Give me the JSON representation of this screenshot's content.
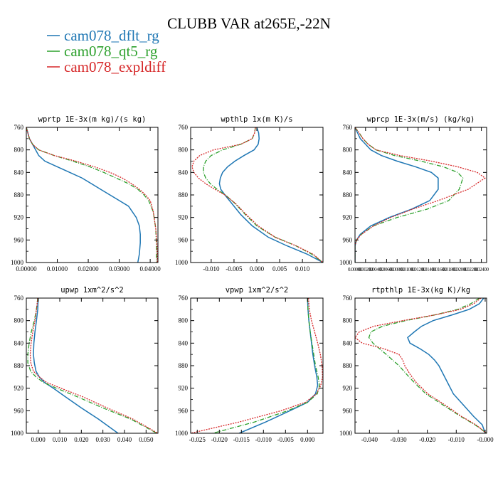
{
  "figure": {
    "title": "CLUBB VAR at265E,-22N",
    "legend": [
      {
        "label": "cam078_dflt_rg",
        "color": "#1f77b4",
        "dash": "solid"
      },
      {
        "label": "cam078_qt5_rg",
        "color": "#2ca02c",
        "dash": "dashdot"
      },
      {
        "label": "cam078_expldiff",
        "color": "#d62728",
        "dash": "dotted"
      }
    ]
  },
  "chart_data": [
    {
      "type": "line",
      "title": "wprtp  1E-3x(m kg)/(s kg)",
      "xlim": [
        0.0,
        0.0425
      ],
      "ylim": [
        760,
        1000
      ],
      "y_inverted": true,
      "xticks": [
        0.0,
        0.01,
        0.02,
        0.03,
        0.04
      ],
      "xtick_labels": [
        "0.00000",
        "0.01000",
        "0.02000",
        "0.03000",
        "0.04000"
      ],
      "yticks": [
        760,
        800,
        840,
        880,
        920,
        960,
        1000
      ],
      "series": [
        {
          "name": "cam078_dflt_rg",
          "x": [
            0.0,
            0.0005,
            0.001,
            0.002,
            0.003,
            0.004,
            0.006,
            0.01,
            0.014,
            0.018,
            0.021,
            0.024,
            0.027,
            0.03,
            0.033,
            0.0355,
            0.0365,
            0.0368,
            0.0368,
            0.0365,
            0.036
          ],
          "y": [
            760,
            770,
            780,
            790,
            800,
            810,
            820,
            830,
            840,
            850,
            860,
            870,
            880,
            890,
            900,
            920,
            935,
            950,
            965,
            985,
            1000
          ]
        },
        {
          "name": "cam078_qt5_rg",
          "x": [
            0.0,
            0.0005,
            0.001,
            0.002,
            0.004,
            0.009,
            0.015,
            0.0205,
            0.025,
            0.029,
            0.033,
            0.036,
            0.038,
            0.0395,
            0.041,
            0.0418,
            0.042,
            0.042
          ],
          "y": [
            760,
            770,
            780,
            790,
            800,
            810,
            820,
            830,
            840,
            850,
            860,
            870,
            880,
            890,
            910,
            940,
            970,
            1000
          ]
        },
        {
          "name": "cam078_expldiff",
          "x": [
            0.0,
            0.0005,
            0.001,
            0.002,
            0.004,
            0.009,
            0.016,
            0.022,
            0.027,
            0.031,
            0.034,
            0.0365,
            0.0385,
            0.04,
            0.041,
            0.0418,
            0.0422,
            0.0423
          ],
          "y": [
            760,
            770,
            780,
            790,
            800,
            810,
            820,
            830,
            840,
            850,
            860,
            870,
            880,
            890,
            910,
            940,
            970,
            1000
          ]
        }
      ]
    },
    {
      "type": "line",
      "title": "wpthlp  1x(m K)/s",
      "xlim": [
        -0.0145,
        0.0145
      ],
      "ylim": [
        760,
        1000
      ],
      "y_inverted": true,
      "xticks": [
        -0.01,
        -0.005,
        0.0,
        0.005,
        0.01
      ],
      "xtick_labels": [
        "-0.010",
        "-0.005",
        "0.000",
        "0.005",
        "0.010"
      ],
      "yticks": [
        760,
        800,
        840,
        880,
        920,
        960,
        1000
      ],
      "series": [
        {
          "name": "cam078_dflt_rg",
          "x": [
            0.0,
            0.0004,
            0.0005,
            0.0003,
            -0.0006,
            -0.0028,
            -0.0048,
            -0.0064,
            -0.0075,
            -0.008,
            -0.0082,
            -0.0079,
            -0.007,
            -0.0055,
            -0.0035,
            -0.001,
            0.0025,
            0.0065,
            0.011,
            0.0145
          ],
          "y": [
            760,
            770,
            780,
            790,
            800,
            810,
            820,
            830,
            840,
            850,
            860,
            870,
            880,
            895,
            915,
            935,
            955,
            970,
            985,
            1000
          ]
        },
        {
          "name": "cam078_qt5_rg",
          "x": [
            -0.0003,
            -0.0005,
            -0.001,
            -0.0035,
            -0.0075,
            -0.01,
            -0.0112,
            -0.0117,
            -0.0117,
            -0.0112,
            -0.0102,
            -0.0087,
            -0.0069,
            -0.0048,
            -0.0025,
            0.0,
            0.004,
            0.0085,
            0.012,
            0.0145
          ],
          "y": [
            760,
            770,
            780,
            790,
            800,
            810,
            820,
            830,
            840,
            850,
            860,
            870,
            880,
            895,
            915,
            935,
            955,
            970,
            985,
            1000
          ]
        },
        {
          "name": "cam078_expldiff",
          "x": [
            -0.0003,
            -0.0005,
            -0.001,
            -0.0035,
            -0.0095,
            -0.0125,
            -0.0138,
            -0.0142,
            -0.0138,
            -0.0128,
            -0.0112,
            -0.0092,
            -0.007,
            -0.0047,
            -0.0023,
            0.0003,
            0.004,
            0.0085,
            0.0123,
            0.0145
          ],
          "y": [
            760,
            770,
            780,
            790,
            800,
            810,
            820,
            830,
            840,
            850,
            860,
            870,
            880,
            895,
            915,
            935,
            955,
            970,
            985,
            1000
          ]
        }
      ]
    },
    {
      "type": "line",
      "title": "wprcp  1E-3x(m/s) (kg/kg)",
      "xlim": [
        0.0,
        0.025
      ],
      "ylim": [
        760,
        1000
      ],
      "y_inverted": true,
      "xticks": [
        0.0,
        0.002,
        0.004,
        0.006,
        0.008,
        0.01,
        0.012,
        0.014,
        0.016,
        0.018,
        0.02,
        0.022,
        0.024
      ],
      "xtick_labels": [
        "0.00000",
        "0.00200",
        "0.00400",
        "0.00600",
        "0.00800",
        "0.01000",
        "0.01200",
        "0.01400",
        "0.01600",
        "0.01800",
        "0.02000",
        "0.02200",
        "0.02400"
      ],
      "yticks": [
        760,
        800,
        840,
        880,
        920,
        960,
        1000
      ],
      "series": [
        {
          "name": "cam078_dflt_rg",
          "x": [
            0.0,
            0.0005,
            0.001,
            0.002,
            0.003,
            0.005,
            0.008,
            0.0115,
            0.0145,
            0.0158,
            0.0158,
            0.0142,
            0.0108,
            0.0065,
            0.003,
            0.001,
            0.0003,
            0.0,
            0.0
          ],
          "y": [
            760,
            770,
            780,
            790,
            800,
            810,
            820,
            830,
            840,
            850,
            870,
            890,
            905,
            920,
            935,
            950,
            960,
            970,
            1000
          ]
        },
        {
          "name": "cam078_qt5_rg",
          "x": [
            0.0,
            0.0008,
            0.0015,
            0.0025,
            0.004,
            0.0075,
            0.0125,
            0.0168,
            0.0195,
            0.0205,
            0.0198,
            0.0178,
            0.0138,
            0.008,
            0.0035,
            0.0012,
            0.0003,
            0.0,
            0.0
          ],
          "y": [
            760,
            770,
            780,
            790,
            800,
            810,
            820,
            830,
            840,
            850,
            870,
            890,
            905,
            920,
            935,
            950,
            960,
            970,
            1000
          ]
        },
        {
          "name": "cam078_expldiff",
          "x": [
            0.0,
            0.0008,
            0.0015,
            0.0025,
            0.004,
            0.0085,
            0.0145,
            0.0195,
            0.0232,
            0.0247,
            0.0215,
            0.0158,
            0.011,
            0.0068,
            0.0035,
            0.0012,
            0.0003,
            0.0,
            0.0
          ],
          "y": [
            760,
            770,
            780,
            790,
            800,
            810,
            820,
            830,
            840,
            850,
            870,
            890,
            905,
            920,
            935,
            950,
            960,
            970,
            1000
          ]
        }
      ]
    },
    {
      "type": "line",
      "title": "upwp  1xm^2/s^2",
      "xlim": [
        -0.0055,
        0.0555
      ],
      "ylim": [
        760,
        1000
      ],
      "y_inverted": true,
      "xticks": [
        0.0,
        0.01,
        0.02,
        0.03,
        0.04,
        0.05
      ],
      "xtick_labels": [
        "0.000",
        "0.010",
        "0.020",
        "0.030",
        "0.040",
        "0.050"
      ],
      "yticks": [
        760,
        800,
        840,
        880,
        920,
        960,
        1000
      ],
      "series": [
        {
          "name": "cam078_dflt_rg",
          "x": [
            0.0,
            -0.0002,
            -0.0008,
            -0.0015,
            -0.002,
            -0.0022,
            -0.0018,
            -0.001,
            0.0005,
            0.003,
            0.007,
            0.0125,
            0.02,
            0.028,
            0.037
          ],
          "y": [
            760,
            780,
            800,
            820,
            840,
            860,
            875,
            890,
            900,
            910,
            920,
            935,
            955,
            975,
            1000
          ]
        },
        {
          "name": "cam078_qt5_rg",
          "x": [
            -0.0002,
            -0.0008,
            -0.0018,
            -0.0032,
            -0.0042,
            -0.0048,
            -0.0048,
            -0.0035,
            -0.001,
            0.0025,
            0.0085,
            0.018,
            0.03,
            0.043,
            0.055
          ],
          "y": [
            760,
            780,
            800,
            820,
            840,
            860,
            875,
            890,
            900,
            910,
            920,
            935,
            955,
            975,
            1000
          ]
        },
        {
          "name": "cam078_expldiff",
          "x": [
            -0.0002,
            -0.0008,
            -0.0015,
            -0.0025,
            -0.0033,
            -0.0037,
            -0.0034,
            -0.0022,
            0.0005,
            0.004,
            0.0105,
            0.0205,
            0.032,
            0.044,
            0.0555
          ],
          "y": [
            760,
            780,
            800,
            820,
            840,
            860,
            875,
            890,
            900,
            910,
            920,
            935,
            955,
            975,
            1000
          ]
        }
      ]
    },
    {
      "type": "line",
      "title": "vpwp  1xm^2/s^2",
      "xlim": [
        -0.0265,
        0.0035
      ],
      "ylim": [
        760,
        1000
      ],
      "y_inverted": true,
      "xticks": [
        -0.025,
        -0.02,
        -0.015,
        -0.01,
        -0.005,
        0.0
      ],
      "xtick_labels": [
        "-0.025",
        "-0.020",
        "-0.015",
        "-0.010",
        "-0.005",
        "0.000"
      ],
      "yticks": [
        760,
        800,
        840,
        880,
        920,
        960,
        1000
      ],
      "series": [
        {
          "name": "cam078_dflt_rg",
          "x": [
            0.0,
            0.0001,
            0.0003,
            0.0006,
            0.0009,
            0.0012,
            0.0016,
            0.0021,
            0.0023,
            0.0018,
            0.0,
            -0.004,
            -0.0095,
            -0.0155
          ],
          "y": [
            760,
            780,
            800,
            820,
            840,
            860,
            880,
            900,
            915,
            930,
            945,
            960,
            980,
            1000
          ]
        },
        {
          "name": "cam078_qt5_rg",
          "x": [
            0.0,
            0.0001,
            0.0003,
            0.0006,
            0.001,
            0.0014,
            0.0018,
            0.0024,
            0.0027,
            0.0022,
            0.0,
            -0.0045,
            -0.012,
            -0.0215
          ],
          "y": [
            760,
            780,
            800,
            820,
            840,
            860,
            880,
            900,
            915,
            930,
            945,
            960,
            980,
            1000
          ]
        },
        {
          "name": "cam078_expldiff",
          "x": [
            0.0002,
            0.0004,
            0.0009,
            0.0016,
            0.0023,
            0.0029,
            0.0033,
            0.0034,
            0.003,
            0.002,
            -0.0005,
            -0.006,
            -0.0155,
            -0.0265
          ],
          "y": [
            760,
            780,
            800,
            820,
            840,
            860,
            880,
            900,
            915,
            930,
            945,
            960,
            980,
            1000
          ]
        }
      ]
    },
    {
      "type": "line",
      "title": "rtpthlp  1E-3x(kg K)/kg",
      "xlim": [
        -0.045,
        0.0005
      ],
      "ylim": [
        760,
        1000
      ],
      "y_inverted": true,
      "xticks": [
        -0.04,
        -0.03,
        -0.02,
        -0.01,
        0.0
      ],
      "xtick_labels": [
        "-0.040",
        "-0.030",
        "-0.020",
        "-0.010",
        "-0.000"
      ],
      "yticks": [
        760,
        800,
        840,
        880,
        920,
        960,
        1000
      ],
      "series": [
        {
          "name": "cam078_dflt_rg",
          "x": [
            -0.0005,
            -0.002,
            -0.0055,
            -0.0115,
            -0.018,
            -0.022,
            -0.0245,
            -0.0268,
            -0.026,
            -0.0225,
            -0.0195,
            -0.0175,
            -0.016,
            -0.0145,
            -0.013,
            -0.011,
            -0.0075,
            -0.004,
            -0.001,
            0.0
          ],
          "y": [
            760,
            770,
            780,
            790,
            800,
            810,
            820,
            830,
            840,
            850,
            860,
            870,
            880,
            895,
            910,
            930,
            950,
            970,
            985,
            1000
          ]
        },
        {
          "name": "cam078_qt5_rg",
          "x": [
            -0.002,
            -0.005,
            -0.0095,
            -0.0175,
            -0.0275,
            -0.0355,
            -0.0395,
            -0.0402,
            -0.0388,
            -0.0365,
            -0.0342,
            -0.032,
            -0.0298,
            -0.0272,
            -0.0245,
            -0.0205,
            -0.0145,
            -0.0085,
            -0.0035,
            0.0005
          ],
          "y": [
            760,
            770,
            780,
            790,
            800,
            810,
            820,
            830,
            840,
            850,
            860,
            870,
            880,
            895,
            910,
            930,
            950,
            970,
            985,
            1000
          ]
        },
        {
          "name": "cam078_expldiff",
          "x": [
            -0.0015,
            -0.004,
            -0.0085,
            -0.0175,
            -0.0285,
            -0.0385,
            -0.0435,
            -0.045,
            -0.0425,
            -0.035,
            -0.0298,
            -0.0285,
            -0.0278,
            -0.026,
            -0.0238,
            -0.0198,
            -0.0138,
            -0.0082,
            -0.0032,
            0.0005
          ],
          "y": [
            760,
            770,
            780,
            790,
            800,
            810,
            820,
            830,
            840,
            850,
            860,
            870,
            880,
            895,
            910,
            930,
            950,
            970,
            985,
            1000
          ]
        }
      ]
    }
  ]
}
